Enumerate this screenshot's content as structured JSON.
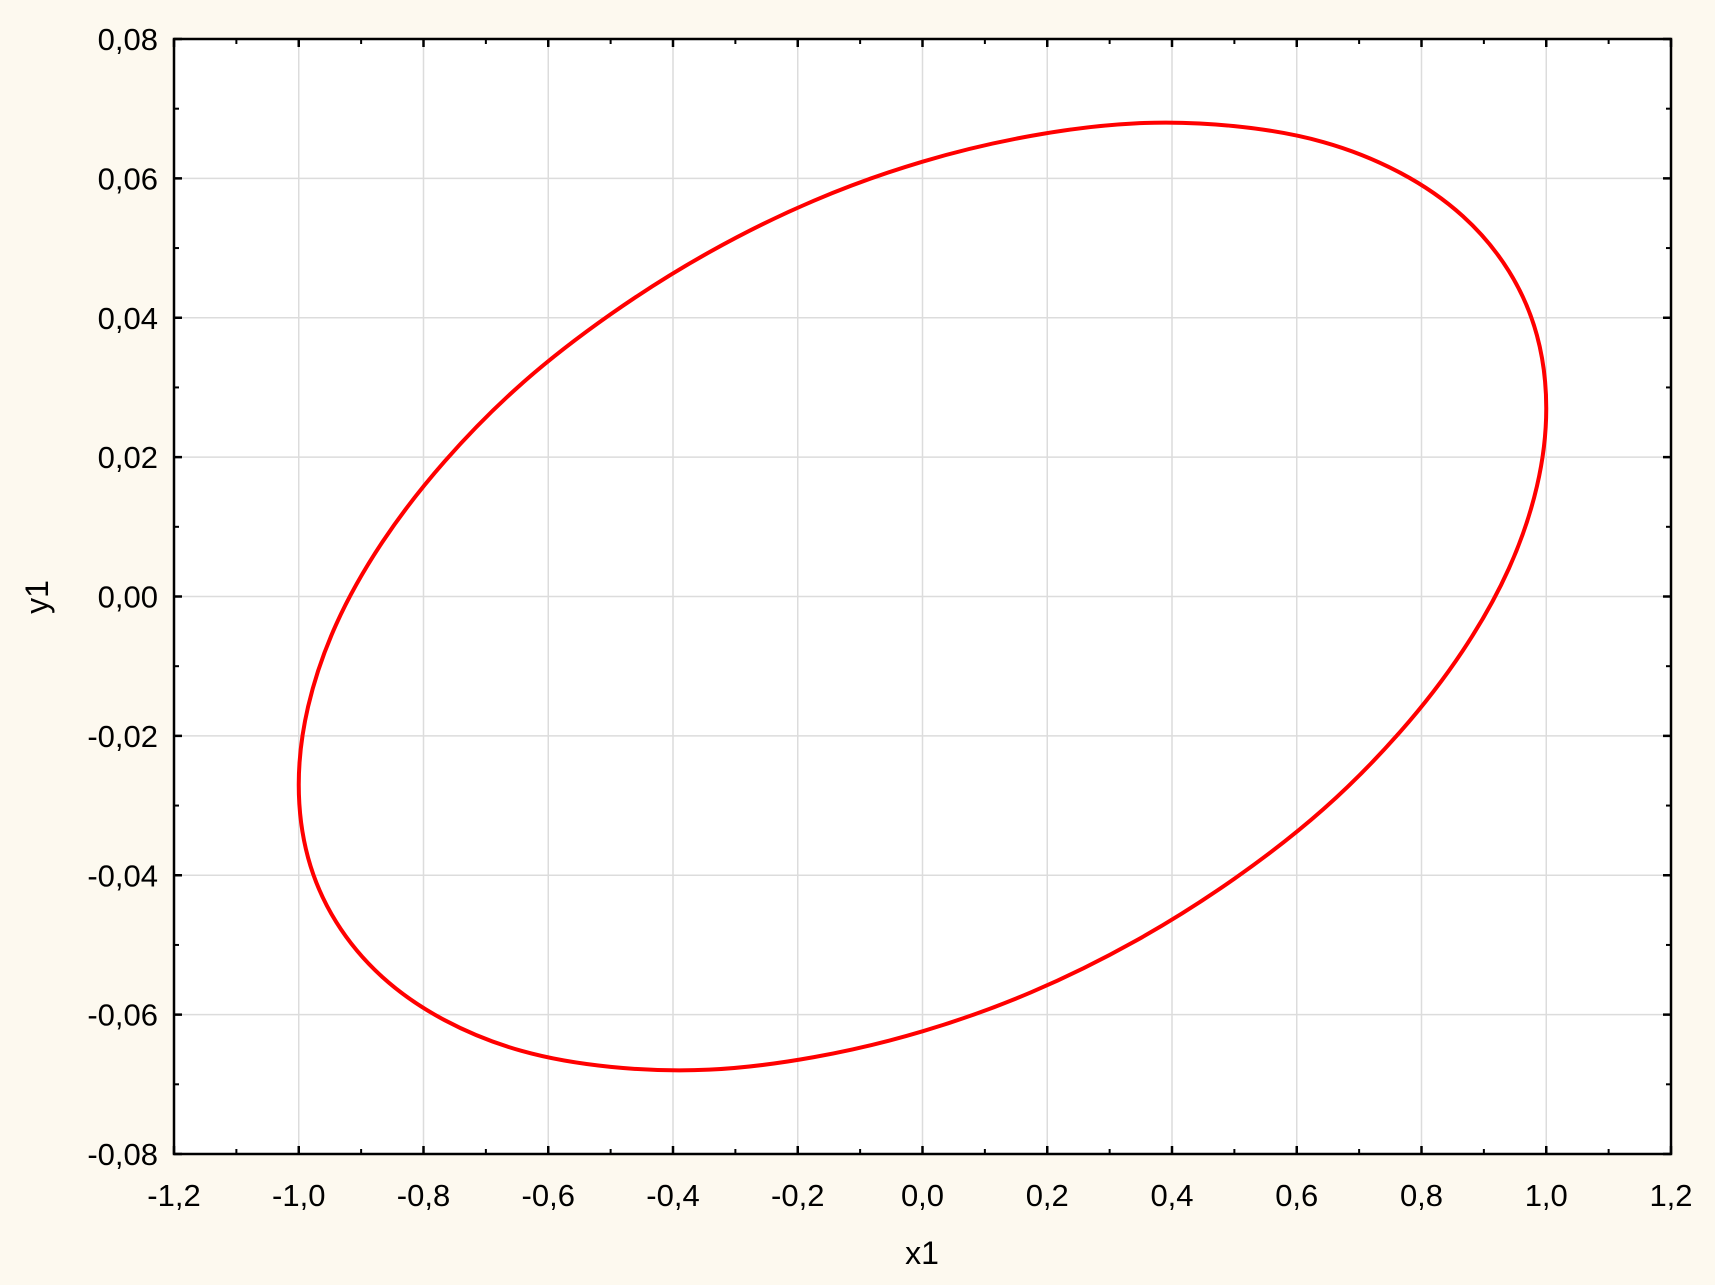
{
  "chart_data": {
    "type": "line",
    "title": "",
    "xlabel": "x1",
    "ylabel": "y1",
    "xlim": [
      -1.2,
      1.2
    ],
    "ylim": [
      -0.08,
      0.08
    ],
    "x_ticks": [
      -1.2,
      -1.0,
      -0.8,
      -0.6,
      -0.4,
      -0.2,
      0.0,
      0.2,
      0.4,
      0.6,
      0.8,
      1.0,
      1.2
    ],
    "x_tick_labels": [
      "-1,2",
      "-1,0",
      "-0,8",
      "-0,6",
      "-0,4",
      "-0,2",
      "0,0",
      "0,2",
      "0,4",
      "0,6",
      "0,8",
      "1,0",
      "1,2"
    ],
    "y_ticks": [
      -0.08,
      -0.06,
      -0.04,
      -0.02,
      0.0,
      0.02,
      0.04,
      0.06,
      0.08
    ],
    "y_tick_labels": [
      "-0,08",
      "-0,06",
      "-0,04",
      "-0,02",
      "0,00",
      "0,02",
      "0,04",
      "0,06",
      "0,08"
    ],
    "grid": true,
    "closed_curve": true,
    "series": [
      {
        "color": "#ff0000",
        "x": [
          1.0,
          0.985,
          0.94,
          0.866,
          0.766,
          0.643,
          0.5,
          0.342,
          0.174,
          0.0,
          -0.174,
          -0.342,
          -0.5,
          -0.643,
          -0.766,
          -0.866,
          -0.94,
          -0.985,
          -1.0,
          -0.985,
          -0.94,
          -0.866,
          -0.766,
          -0.643,
          -0.5,
          -0.342,
          -0.174,
          0.0,
          0.174,
          0.342,
          0.5,
          0.643,
          0.766,
          0.866,
          0.94,
          0.985
        ],
        "y": [
          0.027,
          0.0375,
          0.0467,
          0.0546,
          0.0608,
          0.0652,
          0.0675,
          0.0679,
          0.0661,
          0.0624,
          0.0568,
          0.0494,
          0.0405,
          0.0305,
          0.0194,
          0.0078,
          -0.004,
          -0.0158,
          -0.027,
          -0.0375,
          -0.0467,
          -0.0546,
          -0.0608,
          -0.0652,
          -0.0675,
          -0.0679,
          -0.0661,
          -0.0624,
          -0.0568,
          -0.0494,
          -0.0405,
          -0.0305,
          -0.0194,
          -0.0078,
          0.004,
          0.0158
        ]
      }
    ]
  }
}
